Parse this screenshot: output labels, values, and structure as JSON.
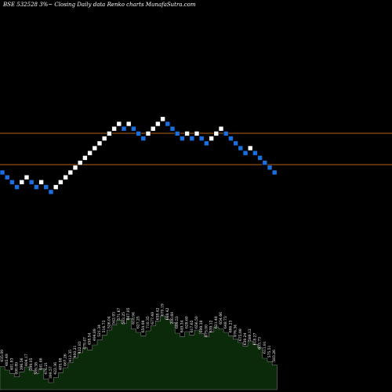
{
  "header": {
    "text": "BSE 532528  3%~  Closing Daily data  Renko  charts MunafaSutra.com"
  },
  "colors": {
    "background": "#000000",
    "up_brick": "#ffffff",
    "down_brick": "#1a6fe0",
    "level_line": "#b5651d",
    "volume_fill": "#0a2a0a",
    "volume_stroke": "#7a7a7a"
  },
  "chart_data": {
    "type": "renko",
    "title": "BSE 532528  3%~  Closing Daily data  Renko  charts MunafaSutra.com",
    "brick_percent": 3,
    "bricks": [
      "down",
      "down",
      "down",
      "down",
      "up",
      "up",
      "down",
      "down",
      "up",
      "down",
      "down",
      "up",
      "up",
      "up",
      "up",
      "up",
      "up",
      "up",
      "up",
      "up",
      "up",
      "up",
      "up",
      "up",
      "up",
      "down",
      "up",
      "down",
      "down",
      "down",
      "up",
      "up",
      "up",
      "up",
      "down",
      "down",
      "down",
      "down",
      "up",
      "down",
      "up",
      "down",
      "down",
      "up",
      "up",
      "up",
      "down",
      "down",
      "down",
      "down",
      "down",
      "up",
      "down",
      "down",
      "down",
      "down",
      "down"
    ],
    "level_lines": 2,
    "volume_labels": [
      "435.09",
      "483.49",
      "401.83",
      "490.89",
      "396.56",
      "404.17",
      "399.05",
      "389.38",
      "441.46",
      "476.21",
      "399.57",
      "422.36",
      "405.98",
      "467.26",
      "412.35",
      "400.21",
      "422.83",
      "479.47",
      "458.54",
      "494.89",
      "521.34",
      "516.73",
      "526.04",
      "542.93",
      "571.67",
      "583.25",
      "607.05",
      "618.94",
      "627.25",
      "654.98",
      "710.35",
      "677.49",
      "638.42",
      "670.19",
      "668.42",
      "700.69",
      "699.53",
      "649.34",
      "628.60",
      "617.65",
      "656.50",
      "699.38",
      "675.00",
      "639.12",
      "621.48",
      "654.66",
      "648.73",
      "686.23",
      "676.34",
      "675.99",
      "639.24",
      "588.12",
      "618.27",
      "603.73",
      "611.91",
      "575.51",
      "583.26"
    ]
  }
}
